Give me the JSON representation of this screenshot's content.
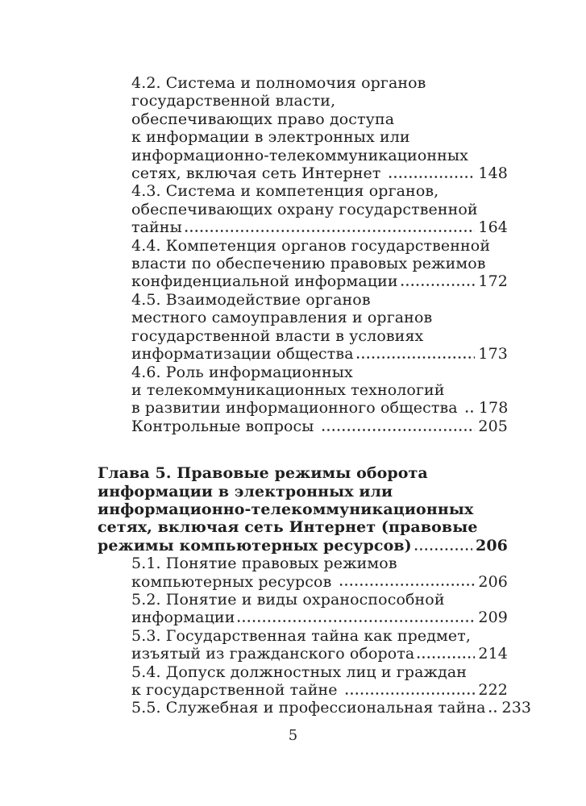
{
  "footer": {
    "page_number": "5"
  },
  "toc": {
    "entries": [
      {
        "id": "4-2",
        "style": "sub",
        "wrapped_lines": [
          "4.2. Система и полномочия органов",
          "государственной власти,",
          "обеспечивающих право доступа",
          "к информации в электронных или",
          "информационно-телекоммуникационных"
        ],
        "leader_line": {
          "text": "сетях, включая сеть Интернет ",
          "page": "148"
        }
      },
      {
        "id": "4-3",
        "style": "sub",
        "wrapped_lines": [
          "4.3. Система и компетенция органов,",
          "обеспечивающих охрану государственной"
        ],
        "leader_line": {
          "text": "тайны",
          "page": "164"
        }
      },
      {
        "id": "4-4",
        "style": "sub",
        "wrapped_lines": [
          "4.4. Компетенция органов государственной",
          "власти по обеспечению правовых режимов"
        ],
        "leader_line": {
          "text": "конфиденциальной информации",
          "page": "172"
        }
      },
      {
        "id": "4-5",
        "style": "sub",
        "wrapped_lines": [
          "4.5. Взаимодействие органов",
          "местного самоуправления и органов",
          "государственной власти в условиях"
        ],
        "leader_line": {
          "text": "информатизации общества",
          "page": "173"
        }
      },
      {
        "id": "4-6",
        "style": "sub",
        "wrapped_lines": [
          "4.6. Роль информационных",
          "и телекоммуникационных технологий"
        ],
        "leader_line": {
          "text": "в развитии информационного общества ",
          "page": "178"
        }
      },
      {
        "id": "kontrolnye-voprosy",
        "style": "sub",
        "wrapped_lines": [],
        "leader_line": {
          "text": "Контрольные вопросы ",
          "page": "205"
        }
      },
      {
        "id": "chapter-5",
        "style": "chapter",
        "wrapped_lines": [
          "Глава 5. Правовые режимы оборота",
          "информации в электронных или",
          "информационно-телекоммуникационных",
          "сетях, включая сеть Интернет (правовые"
        ],
        "leader_line": {
          "text": "режимы компьютерных ресурсов)",
          "page": "206"
        }
      },
      {
        "id": "5-1",
        "style": "sub",
        "wrapped_lines": [
          "5.1. Понятие правовых режимов"
        ],
        "leader_line": {
          "text": "компьютерных ресурсов ",
          "page": "206"
        }
      },
      {
        "id": "5-2",
        "style": "sub",
        "wrapped_lines": [
          "5.2. Понятие и виды охраноспособной"
        ],
        "leader_line": {
          "text": "информации",
          "page": "209"
        }
      },
      {
        "id": "5-3",
        "style": "sub",
        "wrapped_lines": [
          "5.3. Государственная тайна как предмет,"
        ],
        "leader_line": {
          "text": "изъятый из гражданского оборота",
          "page": "214"
        }
      },
      {
        "id": "5-4",
        "style": "sub",
        "wrapped_lines": [
          "5.4. Допуск должностных лиц и граждан"
        ],
        "leader_line": {
          "text": "к государственной тайне ",
          "page": "222"
        }
      },
      {
        "id": "5-5",
        "style": "sub",
        "wrapped_lines": [],
        "leader_line": {
          "text": "5.5. Служебная и профессиональная тайна",
          "page": "233"
        }
      }
    ]
  }
}
